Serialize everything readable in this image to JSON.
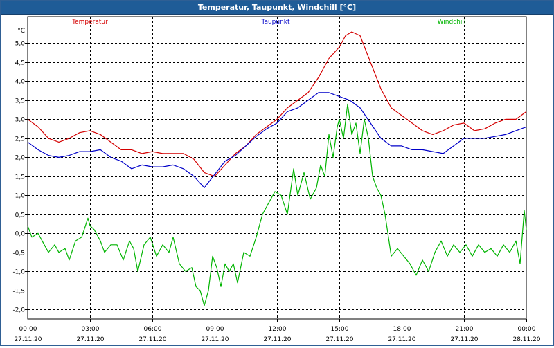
{
  "window": {
    "title": "Temperatur, Taupunkt, Windchill [°C]"
  },
  "chart_data": {
    "type": "line",
    "title": "Temperatur, Taupunkt, Windchill [°C]",
    "ylabel": "°C",
    "ylim": [
      -2.25,
      5.7
    ],
    "yticks": [
      -2.0,
      -1.5,
      -1.0,
      -0.5,
      0.0,
      0.5,
      1.0,
      1.5,
      2.0,
      2.5,
      3.0,
      3.5,
      4.0,
      4.5,
      5.0
    ],
    "ytick_labels": [
      "-2,0",
      "-1,5",
      "-1,0",
      "-0,5",
      "0,0",
      "0,5",
      "1,0",
      "1,5",
      "2,0",
      "2,5",
      "3,0",
      "3,5",
      "4,0",
      "4,5",
      "5,0"
    ],
    "xlim": [
      0,
      24
    ],
    "xticks": [
      0,
      3,
      6,
      9,
      12,
      15,
      18,
      21,
      24
    ],
    "xtick_time_labels": [
      "00:00",
      "03:00",
      "06:00",
      "09:00",
      "12:00",
      "15:00",
      "18:00",
      "21:00",
      "00:00"
    ],
    "xtick_date_labels": [
      "27.11.20",
      "27.11.20",
      "27.11.20",
      "27.11.20",
      "27.11.20",
      "27.11.20",
      "27.11.20",
      "27.11.20",
      "28.11.20"
    ],
    "grid": true,
    "legend_placement": "top",
    "series": [
      {
        "name": "Temperatur",
        "color": "#d40000",
        "x": [
          0,
          0.5,
          1,
          1.5,
          2,
          2.5,
          3,
          3.5,
          4,
          4.5,
          5,
          5.5,
          6,
          6.5,
          7,
          7.5,
          8,
          8.5,
          9,
          9.5,
          10,
          10.5,
          11,
          11.5,
          12,
          12.5,
          13,
          13.5,
          14,
          14.5,
          15,
          15.3,
          15.6,
          16,
          16.5,
          17,
          17.5,
          18,
          18.5,
          19,
          19.5,
          20,
          20.5,
          21,
          21.5,
          22,
          22.5,
          23,
          23.5,
          24
        ],
        "y": [
          3.0,
          2.8,
          2.5,
          2.4,
          2.5,
          2.65,
          2.7,
          2.6,
          2.4,
          2.2,
          2.2,
          2.1,
          2.15,
          2.1,
          2.1,
          2.1,
          1.95,
          1.6,
          1.5,
          1.8,
          2.1,
          2.3,
          2.6,
          2.8,
          3.0,
          3.3,
          3.5,
          3.7,
          4.1,
          4.6,
          4.9,
          5.2,
          5.3,
          5.2,
          4.5,
          3.8,
          3.3,
          3.1,
          2.9,
          2.7,
          2.6,
          2.7,
          2.85,
          2.9,
          2.7,
          2.75,
          2.9,
          3.0,
          3.0,
          3.2
        ]
      },
      {
        "name": "Taupunkt",
        "color": "#0000c8",
        "x": [
          0,
          0.5,
          1,
          1.5,
          2,
          2.5,
          3,
          3.5,
          4,
          4.5,
          5,
          5.5,
          6,
          6.5,
          7,
          7.5,
          8,
          8.5,
          9,
          9.5,
          10,
          10.5,
          11,
          11.5,
          12,
          12.5,
          13,
          13.5,
          14,
          14.5,
          15,
          15.5,
          16,
          16.5,
          17,
          17.5,
          18,
          18.5,
          19,
          19.5,
          20,
          20.5,
          21,
          21.5,
          22,
          22.5,
          23,
          23.5,
          24
        ],
        "y": [
          2.4,
          2.2,
          2.05,
          2.0,
          2.05,
          2.15,
          2.15,
          2.2,
          2.0,
          1.9,
          1.7,
          1.8,
          1.75,
          1.75,
          1.8,
          1.7,
          1.5,
          1.2,
          1.55,
          1.9,
          2.05,
          2.3,
          2.55,
          2.75,
          2.9,
          3.2,
          3.3,
          3.5,
          3.7,
          3.7,
          3.6,
          3.5,
          3.3,
          2.9,
          2.5,
          2.3,
          2.3,
          2.2,
          2.2,
          2.15,
          2.1,
          2.3,
          2.5,
          2.5,
          2.5,
          2.55,
          2.6,
          2.7,
          2.8
        ]
      },
      {
        "name": "Windchill",
        "color": "#00b400",
        "x": [
          0,
          0.2,
          0.5,
          0.8,
          1,
          1.3,
          1.5,
          1.8,
          2,
          2.3,
          2.6,
          2.9,
          3,
          3.2,
          3.5,
          3.7,
          4,
          4.3,
          4.6,
          4.9,
          5.1,
          5.3,
          5.6,
          5.9,
          6.2,
          6.5,
          6.8,
          7.0,
          7.3,
          7.6,
          7.9,
          8.1,
          8.3,
          8.5,
          8.7,
          8.9,
          9.1,
          9.3,
          9.5,
          9.7,
          9.9,
          10.1,
          10.4,
          10.7,
          11.0,
          11.3,
          11.6,
          11.9,
          12.2,
          12.5,
          12.8,
          13.0,
          13.3,
          13.6,
          13.9,
          14.1,
          14.3,
          14.5,
          14.7,
          14.9,
          15.0,
          15.2,
          15.4,
          15.6,
          15.8,
          16.0,
          16.2,
          16.4,
          16.6,
          16.8,
          17.0,
          17.2,
          17.5,
          17.8,
          18.1,
          18.4,
          18.7,
          19.0,
          19.3,
          19.6,
          19.9,
          20.2,
          20.5,
          20.8,
          21.1,
          21.4,
          21.7,
          22.0,
          22.3,
          22.6,
          22.9,
          23.2,
          23.5,
          23.7,
          23.9,
          24.0
        ],
        "y": [
          0.2,
          -0.1,
          0.0,
          -0.3,
          -0.5,
          -0.3,
          -0.5,
          -0.4,
          -0.7,
          -0.2,
          -0.1,
          0.4,
          0.2,
          0.1,
          -0.2,
          -0.5,
          -0.3,
          -0.3,
          -0.7,
          -0.2,
          -0.4,
          -1.0,
          -0.3,
          -0.1,
          -0.6,
          -0.3,
          -0.5,
          -0.1,
          -0.8,
          -1.0,
          -0.9,
          -1.4,
          -1.5,
          -1.9,
          -1.5,
          -0.6,
          -0.9,
          -1.4,
          -0.8,
          -1.0,
          -0.8,
          -1.3,
          -0.5,
          -0.6,
          -0.1,
          0.5,
          0.8,
          1.1,
          1.0,
          0.5,
          1.7,
          1.0,
          1.6,
          0.9,
          1.2,
          1.8,
          1.5,
          2.6,
          2.0,
          2.8,
          3.0,
          2.5,
          3.4,
          2.6,
          2.9,
          2.1,
          3.0,
          2.5,
          1.5,
          1.2,
          1.0,
          0.5,
          -0.6,
          -0.4,
          -0.6,
          -0.8,
          -1.1,
          -0.7,
          -1.0,
          -0.5,
          -0.2,
          -0.6,
          -0.3,
          -0.5,
          -0.3,
          -0.6,
          -0.3,
          -0.5,
          -0.4,
          -0.6,
          -0.3,
          -0.5,
          -0.2,
          -0.8,
          0.6,
          0.1
        ]
      }
    ]
  }
}
